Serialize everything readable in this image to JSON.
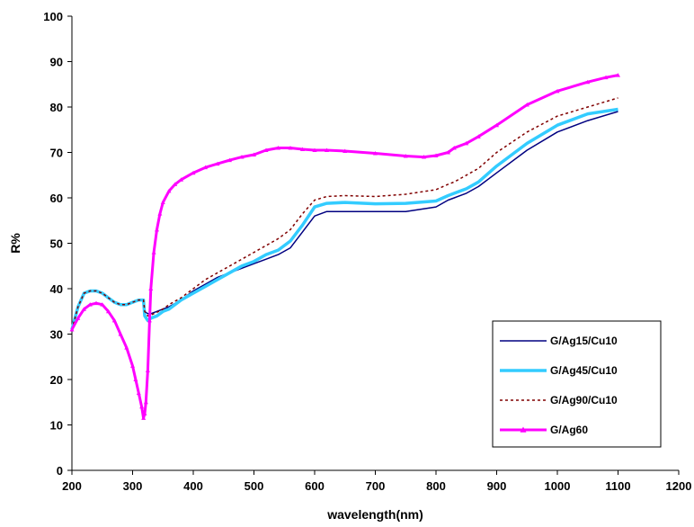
{
  "chart_data": {
    "type": "line",
    "xlabel": "wavelength(nm)",
    "ylabel": "R%",
    "xlim": [
      200,
      1200
    ],
    "ylim": [
      0,
      100
    ],
    "x_ticks": [
      200,
      300,
      400,
      500,
      600,
      700,
      800,
      900,
      1000,
      1100,
      1200
    ],
    "y_ticks": [
      0,
      10,
      20,
      30,
      40,
      50,
      60,
      70,
      80,
      90,
      100
    ],
    "grid": false,
    "legend_position": "right",
    "series": [
      {
        "name": "G/Ag15/Cu10",
        "color": "#000080",
        "style": "solid",
        "marker": "none",
        "x": [
          200,
          210,
          220,
          230,
          240,
          250,
          260,
          270,
          280,
          290,
          300,
          310,
          318,
          320,
          325,
          330,
          340,
          350,
          360,
          380,
          400,
          420,
          440,
          460,
          480,
          500,
          520,
          540,
          560,
          580,
          600,
          620,
          650,
          700,
          750,
          800,
          820,
          830,
          850,
          870,
          900,
          950,
          1000,
          1050,
          1100
        ],
        "y": [
          31,
          36,
          39,
          39.5,
          39.5,
          39,
          38,
          37,
          36.5,
          36.5,
          37,
          37.5,
          37.5,
          35,
          34.5,
          34.5,
          35,
          35.5,
          36,
          37.5,
          39.5,
          41,
          42.5,
          43.5,
          44.5,
          45.5,
          46.5,
          47.5,
          49,
          52.5,
          56,
          57,
          57,
          57,
          57,
          58,
          59.5,
          60,
          61,
          62.5,
          65.5,
          70.5,
          74.5,
          77,
          79
        ]
      },
      {
        "name": "G/Ag45/Cu10",
        "color": "#33CCFF",
        "style": "solid-thick",
        "marker": "none",
        "x": [
          200,
          210,
          220,
          230,
          240,
          250,
          260,
          270,
          280,
          290,
          300,
          310,
          318,
          320,
          325,
          330,
          340,
          350,
          360,
          380,
          400,
          420,
          440,
          460,
          480,
          500,
          520,
          540,
          560,
          580,
          600,
          620,
          650,
          700,
          750,
          800,
          820,
          830,
          850,
          870,
          900,
          950,
          1000,
          1050,
          1100
        ],
        "y": [
          31,
          36,
          39,
          39.5,
          39.5,
          39,
          38,
          37,
          36.5,
          36.5,
          37,
          37.5,
          37.5,
          34,
          33,
          33.5,
          34,
          35,
          35.5,
          37.5,
          39,
          40.5,
          42,
          43.5,
          45,
          46,
          47.5,
          48.5,
          50.5,
          54,
          58,
          58.8,
          59,
          58.7,
          58.8,
          59.3,
          60.5,
          61,
          62,
          63.5,
          67,
          72,
          76,
          78.5,
          79.5
        ]
      },
      {
        "name": "G/Ag90/Cu10",
        "color": "#800000",
        "style": "dashed",
        "marker": "none",
        "x": [
          200,
          210,
          220,
          230,
          240,
          250,
          260,
          270,
          280,
          290,
          300,
          310,
          318,
          320,
          325,
          330,
          340,
          350,
          360,
          380,
          400,
          420,
          440,
          460,
          480,
          500,
          520,
          540,
          560,
          580,
          600,
          620,
          650,
          700,
          750,
          800,
          820,
          830,
          850,
          870,
          900,
          950,
          1000,
          1050,
          1100
        ],
        "y": [
          31,
          36,
          39,
          39.5,
          39.5,
          39,
          38,
          37,
          36.5,
          36.5,
          37,
          37.5,
          37.5,
          35,
          34,
          34.2,
          34.8,
          35.5,
          36.5,
          38,
          40,
          42,
          43.5,
          45,
          46.5,
          48,
          49.5,
          51,
          53,
          56.5,
          59.5,
          60.3,
          60.5,
          60.3,
          60.8,
          61.8,
          63,
          63.5,
          65,
          66.5,
          70,
          74.5,
          78,
          80,
          82
        ]
      },
      {
        "name": "G/Ag60",
        "color": "#FF00FF",
        "style": "solid",
        "marker": "triangle",
        "x": [
          200,
          210,
          220,
          230,
          240,
          250,
          260,
          270,
          280,
          290,
          300,
          305,
          310,
          315,
          318,
          320,
          322,
          325,
          328,
          330,
          335,
          340,
          345,
          350,
          360,
          370,
          380,
          400,
          420,
          440,
          460,
          480,
          500,
          520,
          540,
          560,
          580,
          600,
          620,
          650,
          700,
          750,
          780,
          800,
          820,
          830,
          850,
          870,
          900,
          950,
          1000,
          1050,
          1080,
          1100
        ],
        "y": [
          31,
          33.5,
          35.5,
          36.5,
          36.8,
          36.5,
          35,
          33,
          30,
          27,
          23,
          20,
          17,
          14,
          11.5,
          12.5,
          15,
          22,
          33,
          40,
          48,
          53,
          56.5,
          59,
          61.5,
          63,
          64,
          65.5,
          66.7,
          67.5,
          68.3,
          69,
          69.5,
          70.5,
          71,
          71,
          70.7,
          70.5,
          70.5,
          70.3,
          69.8,
          69.2,
          69,
          69.3,
          70,
          71,
          72,
          73.5,
          76,
          80.5,
          83.5,
          85.5,
          86.5,
          87
        ]
      }
    ]
  }
}
